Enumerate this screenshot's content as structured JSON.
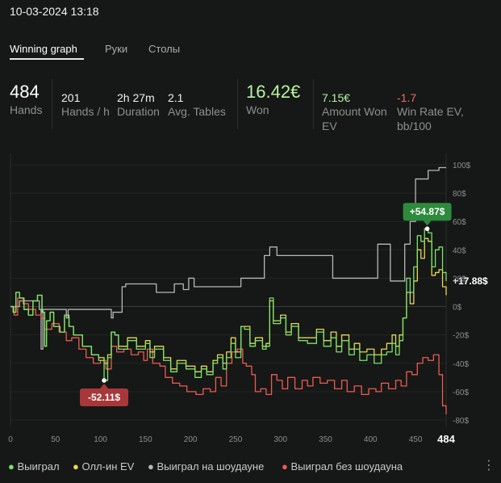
{
  "header": {
    "date": "10-03-2024 13:18"
  },
  "tabs": [
    {
      "label": "Winning graph",
      "active": true
    },
    {
      "label": "Руки",
      "active": false
    },
    {
      "label": "Столы",
      "active": false
    }
  ],
  "stats": {
    "hands": {
      "value": "484",
      "label": "Hands"
    },
    "hands_per_hour": {
      "value": "201",
      "label": "Hands / h"
    },
    "duration": {
      "value": "2h 27m",
      "label": "Duration"
    },
    "avg_tables": {
      "value": "2.1",
      "label": "Avg. Tables"
    },
    "won": {
      "value": "16.42€",
      "label": "Won"
    },
    "amount_won_ev": {
      "value": "7.15€",
      "label_line1": "Amount Won",
      "label_line2": "EV"
    },
    "win_rate_ev": {
      "value": "-1.7",
      "label_line1": "Win Rate EV,",
      "label_line2": "bb/100"
    }
  },
  "colors": {
    "won": "#7be36a",
    "all_in_ev": "#e8d84f",
    "showdown": "#b7b7b7",
    "non_showdown": "#ef5a52",
    "max_badge": "#2e8a3c",
    "min_badge": "#a8373a",
    "won_stat": "#b9f2a0",
    "win_rate_ev": "#ef6b63"
  },
  "chart_data": {
    "type": "line",
    "x_label_last": "484",
    "xlim": [
      0,
      484
    ],
    "ylim": [
      -80,
      100
    ],
    "x_ticks": [
      0,
      50,
      100,
      150,
      200,
      250,
      300,
      350,
      400,
      450
    ],
    "y_ticks": [
      100,
      80,
      60,
      40,
      20,
      0,
      -20,
      -40,
      -60,
      -80
    ],
    "y_tick_labels": [
      "100$",
      "80$",
      "60$",
      "40$",
      "20$",
      "0$",
      "-20$",
      "-40$",
      "-60$",
      "-80$"
    ],
    "annotations": {
      "max": {
        "x": 463,
        "y": 54.87,
        "label": "+54.87$"
      },
      "min": {
        "x": 104,
        "y": -52.11,
        "label": "-52.11$"
      },
      "final": {
        "label": "+17.88$"
      }
    },
    "series": [
      {
        "name": "Выиграл",
        "points": [
          [
            0,
            0
          ],
          [
            3,
            -4
          ],
          [
            6,
            10
          ],
          [
            10,
            6
          ],
          [
            15,
            -2
          ],
          [
            20,
            -6
          ],
          [
            25,
            4
          ],
          [
            30,
            8
          ],
          [
            35,
            -4
          ],
          [
            38,
            -28
          ],
          [
            40,
            -10
          ],
          [
            44,
            -4
          ],
          [
            48,
            -14
          ],
          [
            55,
            -18
          ],
          [
            60,
            -6
          ],
          [
            65,
            -14
          ],
          [
            70,
            -20
          ],
          [
            80,
            -28
          ],
          [
            90,
            -34
          ],
          [
            98,
            -38
          ],
          [
            104,
            -52.11
          ],
          [
            108,
            -36
          ],
          [
            112,
            -18
          ],
          [
            116,
            -20
          ],
          [
            120,
            -30
          ],
          [
            130,
            -24
          ],
          [
            140,
            -30
          ],
          [
            150,
            -26
          ],
          [
            155,
            -36
          ],
          [
            160,
            -30
          ],
          [
            170,
            -38
          ],
          [
            178,
            -46
          ],
          [
            185,
            -40
          ],
          [
            195,
            -44
          ],
          [
            205,
            -50
          ],
          [
            212,
            -44
          ],
          [
            218,
            -48
          ],
          [
            225,
            -40
          ],
          [
            230,
            -36
          ],
          [
            236,
            -44
          ],
          [
            240,
            -36
          ],
          [
            245,
            -26
          ],
          [
            250,
            -36
          ],
          [
            256,
            -14
          ],
          [
            260,
            -16
          ],
          [
            266,
            -28
          ],
          [
            272,
            -24
          ],
          [
            280,
            -30
          ],
          [
            284,
            -28
          ],
          [
            288,
            6
          ],
          [
            292,
            -12
          ],
          [
            300,
            -8
          ],
          [
            306,
            -20
          ],
          [
            312,
            -14
          ],
          [
            320,
            -24
          ],
          [
            330,
            -26
          ],
          [
            340,
            -18
          ],
          [
            348,
            -28
          ],
          [
            356,
            -22
          ],
          [
            362,
            -32
          ],
          [
            368,
            -24
          ],
          [
            376,
            -34
          ],
          [
            382,
            -30
          ],
          [
            388,
            -38
          ],
          [
            396,
            -34
          ],
          [
            404,
            -40
          ],
          [
            412,
            -34
          ],
          [
            418,
            -32
          ],
          [
            424,
            -26
          ],
          [
            428,
            -34
          ],
          [
            432,
            -24
          ],
          [
            436,
            -8
          ],
          [
            440,
            20
          ],
          [
            444,
            10
          ],
          [
            448,
            28
          ],
          [
            452,
            50
          ],
          [
            456,
            46
          ],
          [
            460,
            54.87
          ],
          [
            464,
            52
          ],
          [
            468,
            28
          ],
          [
            472,
            40
          ],
          [
            476,
            42
          ],
          [
            480,
            24
          ],
          [
            484,
            17.88
          ]
        ]
      },
      {
        "name": "Олл-ин EV",
        "points": [
          [
            0,
            0
          ],
          [
            3,
            -4
          ],
          [
            6,
            10
          ],
          [
            10,
            6
          ],
          [
            15,
            -2
          ],
          [
            20,
            -6
          ],
          [
            25,
            4
          ],
          [
            30,
            8
          ],
          [
            35,
            -4
          ],
          [
            38,
            -28
          ],
          [
            40,
            -10
          ],
          [
            44,
            -4
          ],
          [
            48,
            -14
          ],
          [
            55,
            -18
          ],
          [
            60,
            -6
          ],
          [
            65,
            -14
          ],
          [
            70,
            -20
          ],
          [
            80,
            -28
          ],
          [
            90,
            -34
          ],
          [
            98,
            -36
          ],
          [
            104,
            -40
          ],
          [
            108,
            -34
          ],
          [
            112,
            -18
          ],
          [
            116,
            -20
          ],
          [
            120,
            -28
          ],
          [
            130,
            -22
          ],
          [
            140,
            -28
          ],
          [
            150,
            -24
          ],
          [
            155,
            -32
          ],
          [
            160,
            -28
          ],
          [
            170,
            -36
          ],
          [
            178,
            -44
          ],
          [
            185,
            -38
          ],
          [
            195,
            -42
          ],
          [
            205,
            -46
          ],
          [
            212,
            -42
          ],
          [
            218,
            -46
          ],
          [
            225,
            -38
          ],
          [
            230,
            -34
          ],
          [
            236,
            -40
          ],
          [
            240,
            -32
          ],
          [
            245,
            -22
          ],
          [
            250,
            -32
          ],
          [
            256,
            -14
          ],
          [
            260,
            -14
          ],
          [
            266,
            -26
          ],
          [
            272,
            -22
          ],
          [
            280,
            -28
          ],
          [
            284,
            -26
          ],
          [
            288,
            4
          ],
          [
            292,
            -10
          ],
          [
            300,
            -6
          ],
          [
            306,
            -18
          ],
          [
            312,
            -12
          ],
          [
            320,
            -22
          ],
          [
            330,
            -22
          ],
          [
            340,
            -16
          ],
          [
            348,
            -24
          ],
          [
            356,
            -18
          ],
          [
            362,
            -28
          ],
          [
            368,
            -20
          ],
          [
            376,
            -30
          ],
          [
            382,
            -26
          ],
          [
            388,
            -32
          ],
          [
            396,
            -30
          ],
          [
            404,
            -34
          ],
          [
            412,
            -30
          ],
          [
            418,
            -26
          ],
          [
            424,
            -20
          ],
          [
            428,
            -28
          ],
          [
            432,
            -20
          ],
          [
            436,
            -8
          ],
          [
            440,
            10
          ],
          [
            444,
            2
          ],
          [
            448,
            18
          ],
          [
            452,
            40
          ],
          [
            456,
            34
          ],
          [
            460,
            48
          ],
          [
            464,
            46
          ],
          [
            468,
            22
          ],
          [
            472,
            24
          ],
          [
            476,
            26
          ],
          [
            480,
            14
          ],
          [
            484,
            8
          ]
        ]
      },
      {
        "name": "Выиграл на шоудауне",
        "points": [
          [
            0,
            0
          ],
          [
            8,
            0
          ],
          [
            10,
            4
          ],
          [
            30,
            4
          ],
          [
            32,
            -2
          ],
          [
            34,
            -30
          ],
          [
            36,
            -2
          ],
          [
            60,
            -2
          ],
          [
            62,
            -8
          ],
          [
            64,
            -2
          ],
          [
            110,
            -2
          ],
          [
            112,
            -8
          ],
          [
            114,
            -4
          ],
          [
            122,
            -4
          ],
          [
            124,
            14
          ],
          [
            128,
            16
          ],
          [
            160,
            16
          ],
          [
            162,
            10
          ],
          [
            180,
            10
          ],
          [
            182,
            16
          ],
          [
            190,
            16
          ],
          [
            192,
            12
          ],
          [
            196,
            12
          ],
          [
            198,
            20
          ],
          [
            202,
            20
          ],
          [
            204,
            14
          ],
          [
            254,
            14
          ],
          [
            256,
            20
          ],
          [
            280,
            20
          ],
          [
            282,
            36
          ],
          [
            286,
            36
          ],
          [
            288,
            42
          ],
          [
            294,
            42
          ],
          [
            296,
            36
          ],
          [
            356,
            36
          ],
          [
            358,
            20
          ],
          [
            406,
            20
          ],
          [
            408,
            44
          ],
          [
            420,
            44
          ],
          [
            422,
            18
          ],
          [
            436,
            18
          ],
          [
            438,
            44
          ],
          [
            442,
            44
          ],
          [
            444,
            60
          ],
          [
            448,
            60
          ],
          [
            450,
            90
          ],
          [
            462,
            90
          ],
          [
            464,
            96
          ],
          [
            474,
            96
          ],
          [
            476,
            98
          ],
          [
            484,
            98
          ]
        ]
      },
      {
        "name": "Выиграл без шоудауна",
        "points": [
          [
            0,
            0
          ],
          [
            4,
            -6
          ],
          [
            8,
            6
          ],
          [
            14,
            2
          ],
          [
            20,
            -2
          ],
          [
            28,
            -6
          ],
          [
            34,
            -8
          ],
          [
            38,
            -16
          ],
          [
            46,
            -12
          ],
          [
            54,
            -18
          ],
          [
            62,
            -24
          ],
          [
            68,
            -22
          ],
          [
            76,
            -30
          ],
          [
            84,
            -36
          ],
          [
            92,
            -40
          ],
          [
            100,
            -38
          ],
          [
            106,
            -44
          ],
          [
            112,
            -28
          ],
          [
            118,
            -32
          ],
          [
            126,
            -30
          ],
          [
            134,
            -34
          ],
          [
            142,
            -32
          ],
          [
            148,
            -38
          ],
          [
            152,
            -30
          ],
          [
            158,
            -40
          ],
          [
            166,
            -42
          ],
          [
            172,
            -50
          ],
          [
            180,
            -54
          ],
          [
            188,
            -56
          ],
          [
            196,
            -60
          ],
          [
            206,
            -62
          ],
          [
            214,
            -58
          ],
          [
            222,
            -60
          ],
          [
            228,
            -50
          ],
          [
            234,
            -56
          ],
          [
            240,
            -40
          ],
          [
            246,
            -32
          ],
          [
            252,
            -30
          ],
          [
            258,
            -40
          ],
          [
            262,
            -42
          ],
          [
            268,
            -48
          ],
          [
            272,
            -60
          ],
          [
            278,
            -58
          ],
          [
            284,
            -62
          ],
          [
            290,
            -48
          ],
          [
            296,
            -52
          ],
          [
            302,
            -58
          ],
          [
            308,
            -50
          ],
          [
            316,
            -58
          ],
          [
            324,
            -52
          ],
          [
            330,
            -56
          ],
          [
            336,
            -50
          ],
          [
            344,
            -54
          ],
          [
            352,
            -52
          ],
          [
            360,
            -58
          ],
          [
            368,
            -52
          ],
          [
            374,
            -60
          ],
          [
            382,
            -56
          ],
          [
            390,
            -62
          ],
          [
            398,
            -58
          ],
          [
            406,
            -60
          ],
          [
            412,
            -54
          ],
          [
            420,
            -58
          ],
          [
            428,
            -52
          ],
          [
            434,
            -56
          ],
          [
            440,
            -46
          ],
          [
            446,
            -48
          ],
          [
            452,
            -40
          ],
          [
            458,
            -36
          ],
          [
            464,
            -38
          ],
          [
            470,
            -34
          ],
          [
            476,
            -48
          ],
          [
            480,
            -70
          ],
          [
            484,
            -76
          ]
        ]
      }
    ]
  },
  "legend": [
    {
      "label": "Выиграл"
    },
    {
      "label": "Олл-ин EV"
    },
    {
      "label": "Выиграл на шоудауне"
    },
    {
      "label": "Выиграл без шоудауна"
    }
  ],
  "icons": {
    "menu": "more-vertical-icon"
  }
}
